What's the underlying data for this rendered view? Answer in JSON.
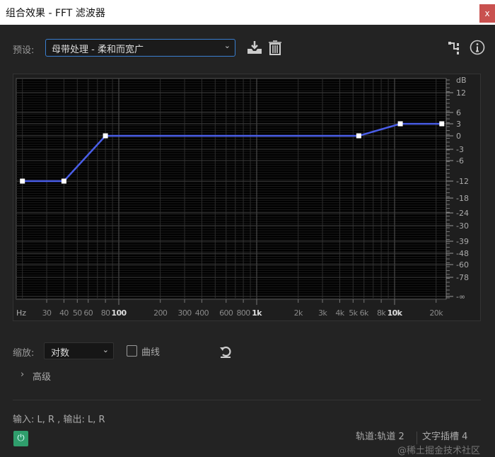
{
  "window": {
    "title": "组合效果 - FFT 滤波器",
    "close_label": "x"
  },
  "preset": {
    "label": "预设:",
    "value": "母带处理 - 柔和而宽广"
  },
  "icons": {
    "save": "download-save-icon",
    "delete": "trash-icon",
    "routing": "routing-icon",
    "info": "info-icon",
    "reset": "reset-icon",
    "power": "power-icon"
  },
  "chart_data": {
    "type": "line",
    "x_scale": "log",
    "xlim": [
      20,
      24000
    ],
    "x_unit_label": "Hz",
    "x_ticks": [
      {
        "v": 30,
        "l": "30"
      },
      {
        "v": 40,
        "l": "40"
      },
      {
        "v": 50,
        "l": "50"
      },
      {
        "v": 60,
        "l": "60"
      },
      {
        "v": 80,
        "l": "80"
      },
      {
        "v": 100,
        "l": "100",
        "bold": true
      },
      {
        "v": 200,
        "l": "200"
      },
      {
        "v": 300,
        "l": "300"
      },
      {
        "v": 400,
        "l": "400"
      },
      {
        "v": 600,
        "l": "600"
      },
      {
        "v": 800,
        "l": "800"
      },
      {
        "v": 1000,
        "l": "1k",
        "bold": true
      },
      {
        "v": 2000,
        "l": "2k"
      },
      {
        "v": 3000,
        "l": "3k"
      },
      {
        "v": 4000,
        "l": "4k"
      },
      {
        "v": 5000,
        "l": "5k"
      },
      {
        "v": 6000,
        "l": "6k"
      },
      {
        "v": 8000,
        "l": "8k"
      },
      {
        "v": 10000,
        "l": "10k",
        "bold": true
      },
      {
        "v": 20000,
        "l": "20k"
      }
    ],
    "y_unit_label": "dB",
    "y_ticks": [
      "12",
      "6",
      "3",
      "0",
      "-3",
      "-6",
      "-12",
      "-18",
      "-24",
      "-30",
      "-39",
      "-48",
      "-60",
      "-78",
      "-∞"
    ],
    "grid": true,
    "line_color": "#4a5ee8",
    "points": [
      {
        "x": 20,
        "y": -12
      },
      {
        "x": 40,
        "y": -12
      },
      {
        "x": 80,
        "y": 0
      },
      {
        "x": 5500,
        "y": 0
      },
      {
        "x": 11000,
        "y": 3
      },
      {
        "x": 22000,
        "y": 3
      }
    ]
  },
  "controls": {
    "zoom_label": "缩放:",
    "zoom_value": "对数",
    "curve_label": "曲线",
    "curve_checked": false,
    "advanced_label": "高级"
  },
  "footer": {
    "io": "输入: L, R , 输出: L, R",
    "track": "轨道:轨道 2",
    "slot": "文字插槽 4",
    "watermark": "@稀土掘金技术社区",
    "power_color": "#2f9e6c"
  }
}
